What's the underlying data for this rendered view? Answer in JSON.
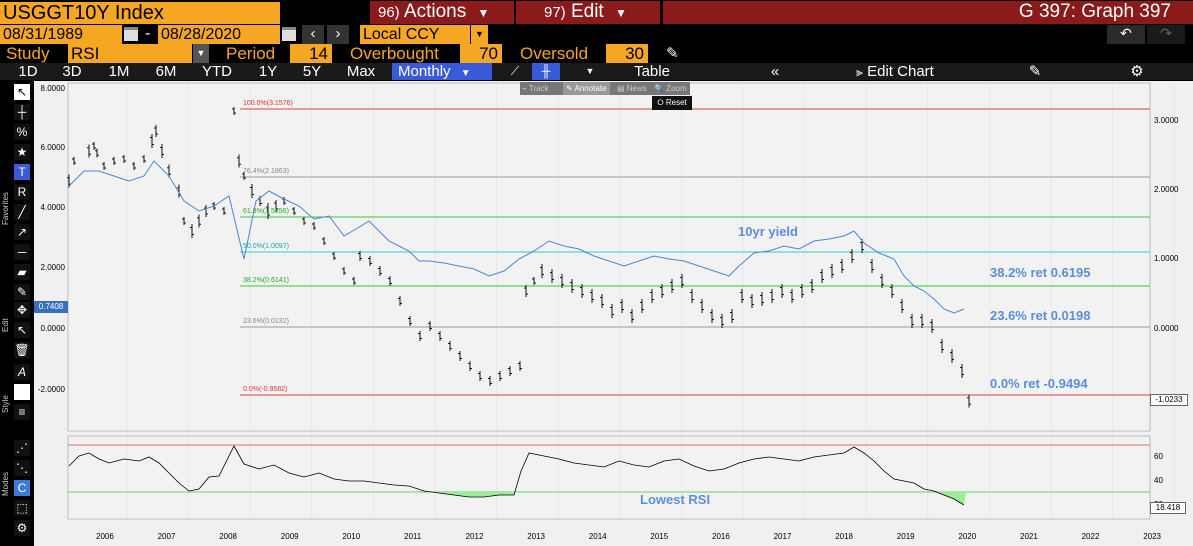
{
  "top": {
    "ticker": "USGGT10Y Index",
    "actions_num": "96)",
    "actions_label": "Actions",
    "edit_num": "97)",
    "edit_label": "Edit",
    "graph_title": "G 397: Graph 397",
    "start_date": "08/31/1989",
    "end_date": "08/28/2020",
    "date_sep": "-",
    "currency": "Local CCY"
  },
  "study": {
    "study_label": "Study",
    "study_value": "RSI",
    "period_label": "Period",
    "period_value": "14",
    "overbought_label": "Overbought",
    "overbought_value": "70",
    "oversold_label": "Oversold",
    "oversold_value": "30"
  },
  "toolbar": {
    "ranges": [
      "1D",
      "3D",
      "1M",
      "6M",
      "YTD",
      "1Y",
      "5Y",
      "Max"
    ],
    "frequency": "Monthly",
    "table_label": "Table",
    "edit_chart_label": "Edit Chart"
  },
  "subtoolbar": {
    "track": "Track",
    "annotate": "Annotate",
    "news": "News",
    "zoom": "Zoom",
    "reset": "Reset"
  },
  "side_tabs": {
    "favorites": "Favorites",
    "edit": "Edit",
    "style": "Style",
    "modes": "Modes"
  },
  "main_axis": {
    "left_ticks": [
      "8.0000",
      "6.0000",
      "4.0000",
      "2.0000",
      "0.0000",
      "-2.0000"
    ],
    "right_ticks": [
      "3.0000",
      "2.0000",
      "1.0000",
      "0.0000"
    ],
    "current_left": "0.7408",
    "current_right": "-1.0233"
  },
  "fib_levels": [
    {
      "label": "100.0%(3.1576)",
      "color": "#e04040"
    },
    {
      "label": "76.4%(2.1863)",
      "color": "#999999"
    },
    {
      "label": "61.8%(1.5856)",
      "color": "#33cc33"
    },
    {
      "label": "50.0%(1.0097)",
      "color": "#33cccc"
    },
    {
      "label": "38.2%(0.6141)",
      "color": "#33cc33"
    },
    {
      "label": "23.6%(0.0132)",
      "color": "#999999"
    },
    {
      "label": "0.0%(-0.9582)",
      "color": "#e04040"
    }
  ],
  "annotations": {
    "yield_label": "10yr yield",
    "ret382": "38.2% ret 0.6195",
    "ret236": "23.6% ret 0.0198",
    "ret0": "0.0% ret -0.9494",
    "lowest_rsi": "Lowest RSI"
  },
  "rsi_axis": {
    "ticks": [
      "60",
      "40",
      "20"
    ],
    "current": "18.418"
  },
  "years": [
    "2006",
    "2007",
    "2008",
    "2009",
    "2010",
    "2011",
    "2012",
    "2013",
    "2014",
    "2015",
    "2016",
    "2017",
    "2018",
    "2019",
    "2020",
    "2021",
    "2022",
    "2023"
  ],
  "colors": {
    "accent": "#f5a623",
    "red_btn": "#8b1a1a",
    "annot_blue": "#5b8ed8",
    "toolbar_blue": "#3a5bd9"
  }
}
